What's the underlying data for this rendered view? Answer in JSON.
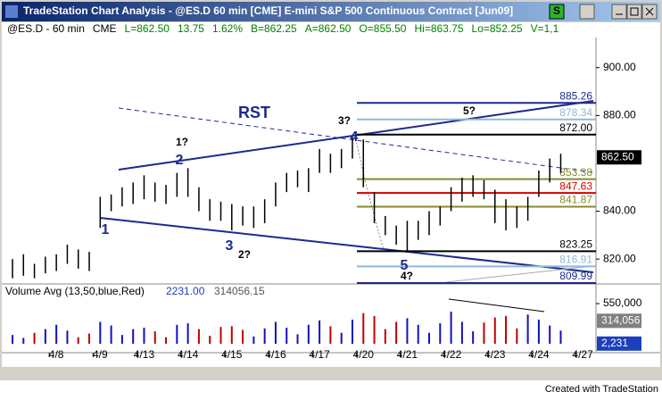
{
  "window": {
    "title": "TradeStation Chart Analysis - @ES.D  60 min  [CME] E-mini S&P 500 Continuous Contract [Jun09]",
    "badge": "S"
  },
  "header": {
    "symbol": "@ES.D - 60 min",
    "exchange": "CME",
    "quote": [
      "L=862.50",
      "13.75",
      "1.62%",
      "B=862.25",
      "A=862.50",
      "O=855.50",
      "Hi=863.75",
      "Lo=852.25",
      "V=1,1"
    ]
  },
  "chart_data": {
    "type": "ohlc",
    "categories": [
      null,
      null,
      null,
      null,
      "4/8",
      null,
      null,
      null,
      "4/9",
      null,
      null,
      null,
      "4/13",
      null,
      null,
      null,
      "4/14",
      null,
      null,
      null,
      "4/15",
      null,
      null,
      null,
      "4/16",
      null,
      null,
      null,
      "4/17",
      null,
      null,
      null,
      "4/20",
      null,
      null,
      null,
      "4/21",
      null,
      null,
      null,
      "4/22",
      null,
      null,
      null,
      "4/23",
      null,
      null,
      null,
      "4/24",
      null,
      null,
      null,
      "4/27"
    ],
    "highs": [
      820,
      822,
      818,
      821,
      822,
      826,
      824,
      823,
      846,
      847,
      850,
      852,
      855,
      852,
      851,
      856,
      858,
      850,
      845,
      844,
      843,
      842,
      842,
      845,
      852,
      856,
      857,
      858,
      866,
      864,
      866,
      871,
      870,
      848,
      838,
      834,
      836,
      836,
      840,
      842,
      850,
      854,
      855,
      853,
      849,
      845,
      842,
      846,
      857,
      862,
      864,
      null,
      null
    ],
    "lows": [
      812,
      813,
      812,
      814,
      815,
      818,
      816,
      815,
      833,
      840,
      842,
      843,
      845,
      844,
      843,
      846,
      846,
      840,
      836,
      836,
      832,
      834,
      833,
      835,
      842,
      848,
      850,
      848,
      856,
      856,
      858,
      862,
      850,
      835,
      830,
      826,
      823,
      828,
      830,
      834,
      840,
      844,
      846,
      845,
      835,
      832,
      833,
      836,
      846,
      852,
      856,
      null,
      null
    ],
    "color": "#000000",
    "ylim": [
      809.6,
      912.6
    ],
    "yticks": [
      {
        "value": 900,
        "label": "900.00"
      },
      {
        "value": 880,
        "label": "880.00"
      },
      {
        "value": 840,
        "label": "840.00"
      },
      {
        "value": 820,
        "label": "820.00"
      }
    ],
    "last": {
      "value": 862.5,
      "label": "862.50"
    },
    "levels": [
      {
        "value": 885.26,
        "label": "885.26",
        "color": "#1c2a8c"
      },
      {
        "value": 878.34,
        "label": "878.34",
        "color": "#8fb8d8"
      },
      {
        "value": 872,
        "label": "872.00",
        "color": "#000000"
      },
      {
        "value": 853.38,
        "label": "853.38",
        "color": "#8a8a2a"
      },
      {
        "value": 847.63,
        "label": "847.63",
        "color": "#d00000"
      },
      {
        "value": 841.87,
        "label": "841.87",
        "color": "#8a8a2a"
      },
      {
        "value": 823.25,
        "label": "823.25",
        "color": "#000000"
      },
      {
        "value": 816.91,
        "label": "816.91",
        "color": "#8fb8d8"
      },
      {
        "value": 809.99,
        "label": "809.99",
        "color": "#1c2a8c"
      }
    ],
    "annotations": [
      "RST",
      "1",
      "2",
      "3",
      "4",
      "5",
      "1?",
      "2?",
      "3?",
      "4?",
      "5?"
    ],
    "volume": {
      "title": "Volume Avg (13,50,blue,Red)",
      "legend_values": [
        "2231.00",
        "314056.15"
      ],
      "values": [
        120000,
        80000,
        150000,
        200000,
        260000,
        180000,
        90000,
        140000,
        300000,
        250000,
        120000,
        200000,
        220000,
        170000,
        90000,
        260000,
        280000,
        200000,
        110000,
        230000,
        240000,
        190000,
        100000,
        210000,
        300000,
        220000,
        130000,
        260000,
        320000,
        240000,
        150000,
        330000,
        420000,
        380000,
        200000,
        300000,
        350000,
        260000,
        150000,
        280000,
        440000,
        300000,
        170000,
        290000,
        360000,
        380000,
        210000,
        400000,
        330000,
        250000,
        180000,
        null,
        null
      ],
      "up_color": "#1010c0",
      "down_color": "#c00000",
      "ylim": [
        0,
        795000
      ],
      "yticks": [
        {
          "value": 550000,
          "label": "550,000"
        }
      ],
      "markers": [
        {
          "value": 314056,
          "label": "314,056",
          "color": "#808080"
        },
        {
          "value": 2231,
          "label": "2,231",
          "color": "#1c3fbf"
        }
      ]
    }
  },
  "footer": "Created with TradeStation"
}
